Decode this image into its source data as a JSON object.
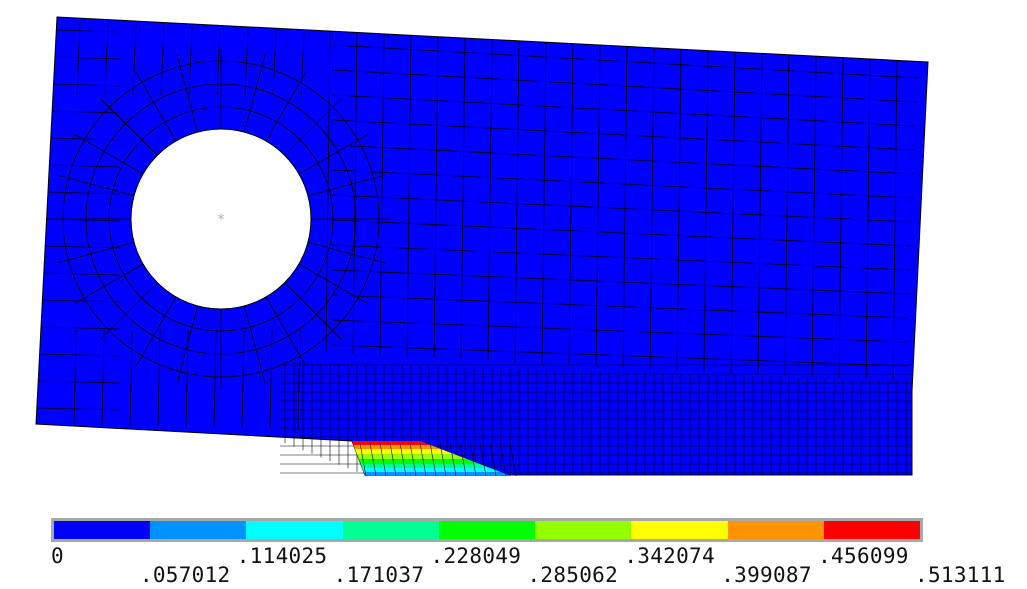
{
  "legend": {
    "colors": [
      "#0000ff",
      "#0093ff",
      "#00ffff",
      "#00ff93",
      "#00ff00",
      "#93ff00",
      "#ffff00",
      "#ff9300",
      "#ff0000"
    ],
    "labels": [
      "0",
      ".057012",
      ".114025",
      ".171037",
      ".228049",
      ".285062",
      ".342074",
      ".399087",
      ".456099",
      ".513111"
    ]
  },
  "model": {
    "body_color": "#0000ff",
    "mesh_line_color": "#000000",
    "hole_color": "#ffffff",
    "center_marker_color": "#b0b0b0"
  }
}
